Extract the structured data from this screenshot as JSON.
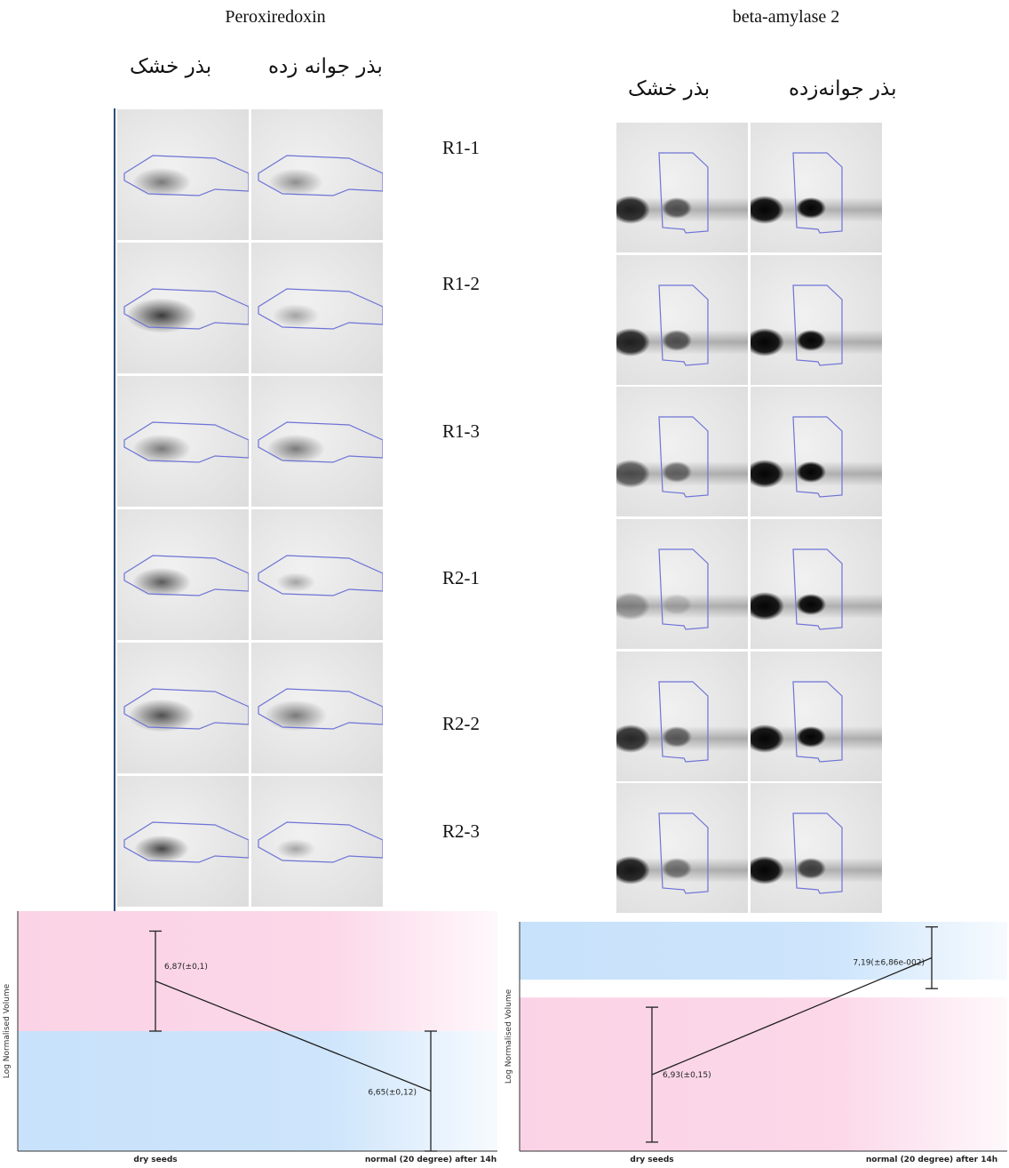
{
  "figure": {
    "left_panel": {
      "title": "Peroxiredoxin",
      "col_dry": "بذر خشک",
      "col_germ": "بذر جوانه زده"
    },
    "right_panel": {
      "title": "beta-amylase 2",
      "col_dry": "بذر خشک",
      "col_germ": "بذر جوانه‌زده"
    },
    "replicates": [
      "R1-1",
      "R1-2",
      "R1-3",
      "R2-1",
      "R2-2",
      "R2-3"
    ]
  },
  "chart_data": [
    {
      "type": "line",
      "ylabel": "Log Normalised Volume",
      "categories": [
        "dry seeds",
        "normal (20 degree) after 14h"
      ],
      "values": [
        6.87,
        6.65
      ],
      "errors": [
        0.1,
        0.12
      ],
      "labels": [
        "6,87(±0,1)",
        "6,65(±0,12)"
      ],
      "ylim": [
        6.53,
        7.01
      ],
      "colors": {
        "high_band": "#fbd3e6",
        "low_band": "#c8e2fb",
        "line": "#222222"
      }
    },
    {
      "type": "line",
      "ylabel": "Log Normalised Volume",
      "categories": [
        "dry seeds",
        "normal (20 degree) after 14h"
      ],
      "values": [
        6.93,
        7.19
      ],
      "errors": [
        0.15,
        0.0686
      ],
      "labels": [
        "6,93(±0,15)",
        "7,19(±6,86e-002)"
      ],
      "ylim": [
        6.76,
        7.27
      ],
      "colors": {
        "high_band": "#c8e2fb",
        "low_band": "#fbd3e6",
        "line": "#222222"
      }
    }
  ]
}
